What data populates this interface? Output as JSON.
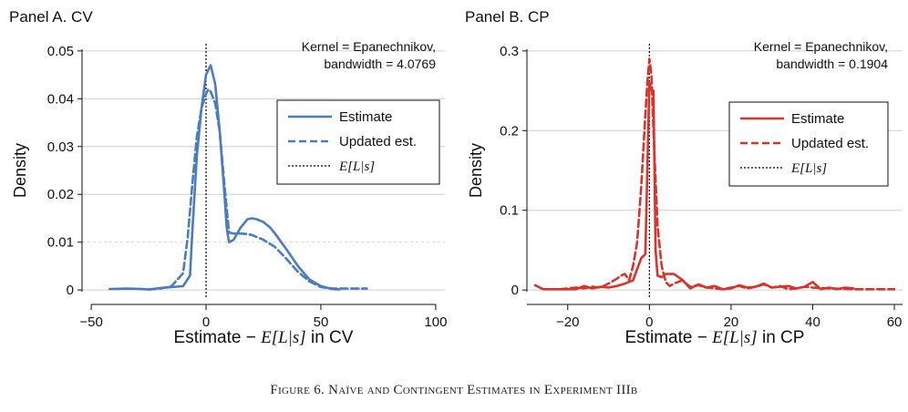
{
  "figure_caption": "Figure 6. Naïve and Contingent Estimates in Experiment IIIb",
  "colors": {
    "cv": "#4a7cc0",
    "cp": "#d9342b",
    "grid": "#cfcfcf",
    "guide": "#000000"
  },
  "chart_data": [
    {
      "panel_title": "Panel A. CV",
      "type": "line",
      "xlabel_prefix": "Estimate − ",
      "xlabel_math": "E[L|s]",
      "xlabel_suffix": " in CV",
      "ylabel": "Density",
      "xlim": [
        -54,
        104
      ],
      "ylim": [
        -0.0015,
        0.0515
      ],
      "xticks": [
        -50,
        0,
        50,
        100
      ],
      "xtick_labels": [
        "−50",
        "0",
        "50",
        "100"
      ],
      "yticks": [
        0,
        0.01,
        0.02,
        0.03,
        0.04,
        0.05
      ],
      "ytick_labels": [
        "0",
        "0.01",
        "0.02",
        "0.03",
        "0.04",
        "0.05"
      ],
      "grid": true,
      "annotation_lines": [
        "Kernel = Epanechnikov,",
        "bandwidth = 4.0769"
      ],
      "legend": {
        "placement": "right",
        "entries": [
          {
            "label": "Estimate",
            "style": "solid"
          },
          {
            "label": "Updated est.",
            "style": "dashed"
          },
          {
            "label": "E[L|s]",
            "style": "dotted",
            "math": true
          }
        ]
      },
      "reference_x": 0,
      "series": [
        {
          "name": "Estimate",
          "style": "solid",
          "x": [
            -42,
            -35,
            -28,
            -25,
            -20,
            -15,
            -10,
            -7,
            -6,
            -4,
            -2,
            0,
            1,
            2,
            4,
            6,
            8,
            9,
            10,
            12,
            15,
            18,
            20,
            22,
            25,
            28,
            30,
            35,
            40,
            45,
            50,
            55,
            58
          ],
          "y": [
            0.0002,
            0.0003,
            0.0002,
            0.0001,
            0.0004,
            0.0006,
            0.0008,
            0.003,
            0.012,
            0.028,
            0.038,
            0.045,
            0.046,
            0.047,
            0.043,
            0.033,
            0.02,
            0.013,
            0.01,
            0.0105,
            0.013,
            0.0148,
            0.015,
            0.0148,
            0.0142,
            0.013,
            0.0118,
            0.0085,
            0.005,
            0.0022,
            0.0008,
            0.0002,
            0.0001
          ]
        },
        {
          "name": "Updated est.",
          "style": "dashed",
          "x": [
            -25,
            -20,
            -15,
            -10,
            -8,
            -6,
            -4,
            -2,
            0,
            1,
            2,
            4,
            6,
            8,
            10,
            12,
            15,
            18,
            20,
            25,
            30,
            35,
            40,
            45,
            50,
            55,
            60,
            65,
            70
          ],
          "y": [
            0.0001,
            0.0003,
            0.0008,
            0.0035,
            0.011,
            0.022,
            0.032,
            0.038,
            0.041,
            0.042,
            0.0415,
            0.039,
            0.033,
            0.022,
            0.012,
            0.0118,
            0.0118,
            0.0117,
            0.0115,
            0.0105,
            0.009,
            0.0065,
            0.0038,
            0.0018,
            0.0006,
            0.0003,
            0.0003,
            0.0003,
            0.0003
          ]
        }
      ]
    },
    {
      "panel_title": "Panel B. CP",
      "type": "line",
      "xlabel_prefix": "Estimate − ",
      "xlabel_math": "E[L|s]",
      "xlabel_suffix": " in CP",
      "ylabel": "Density",
      "xlim": [
        -30,
        62
      ],
      "ylim": [
        -0.009,
        0.309
      ],
      "xticks": [
        -20,
        0,
        20,
        40,
        60
      ],
      "xtick_labels": [
        "−20",
        "0",
        "20",
        "40",
        "60"
      ],
      "yticks": [
        0,
        0.1,
        0.2,
        0.3
      ],
      "ytick_labels": [
        "0",
        "0.1",
        "0.2",
        "0.3"
      ],
      "grid": true,
      "annotation_lines": [
        "Kernel = Epanechnikov,",
        "bandwidth = 0.1904"
      ],
      "legend": {
        "placement": "right",
        "entries": [
          {
            "label": "Estimate",
            "style": "solid"
          },
          {
            "label": "Updated est.",
            "style": "dashed"
          },
          {
            "label": "E[L|s]",
            "style": "dotted",
            "math": true
          }
        ]
      },
      "reference_x": 0,
      "series": [
        {
          "name": "Estimate",
          "style": "solid",
          "x": [
            -28,
            -26,
            -22,
            -18,
            -16,
            -14,
            -12,
            -10,
            -8,
            -6,
            -4,
            -2,
            -1,
            0,
            0.5,
            1,
            1.5,
            2,
            3,
            4,
            6,
            8,
            10,
            12,
            14,
            16,
            18,
            20,
            22,
            24,
            26,
            28,
            30,
            32,
            34,
            36,
            38,
            40,
            42,
            44,
            46,
            48,
            50
          ],
          "y": [
            0.006,
            0.001,
            0.001,
            0.001,
            0.005,
            0.002,
            0.004,
            0.003,
            0.005,
            0.008,
            0.012,
            0.04,
            0.045,
            0.26,
            0.25,
            0.25,
            0.05,
            0.018,
            0.016,
            0.02,
            0.02,
            0.013,
            0.002,
            0.007,
            0.003,
            0.005,
            0.001,
            0.002,
            0.006,
            0.003,
            0.004,
            0.008,
            0.003,
            0.004,
            0.005,
            0.002,
            0.004,
            0.01,
            0.001,
            0.003,
            0.001,
            0.003,
            0.002
          ]
        },
        {
          "name": "Updated est.",
          "style": "dashed",
          "x": [
            -22,
            -18,
            -16,
            -14,
            -12,
            -10,
            -8,
            -7,
            -6,
            -5,
            -4,
            -3,
            -2,
            -1,
            -0.5,
            0,
            0.5,
            1,
            2,
            3,
            4,
            5,
            6,
            8,
            10,
            12,
            14,
            16,
            18,
            20,
            22,
            24,
            26,
            28,
            30,
            32,
            34,
            36,
            38,
            40,
            44,
            50,
            56,
            60
          ],
          "y": [
            0.001,
            0.003,
            0.002,
            0.004,
            0.003,
            0.008,
            0.014,
            0.018,
            0.02,
            0.012,
            0.03,
            0.06,
            0.13,
            0.22,
            0.26,
            0.29,
            0.27,
            0.2,
            0.08,
            0.03,
            0.01,
            0.005,
            0.008,
            0.012,
            0.004,
            0.006,
            0.003,
            0.002,
            0.001,
            0.003,
            0.005,
            0.002,
            0.004,
            0.007,
            0.003,
            0.005,
            0.001,
            0.002,
            0.004,
            0.003,
            0.002,
            0.001,
            0.001,
            0.001
          ]
        }
      ]
    }
  ]
}
